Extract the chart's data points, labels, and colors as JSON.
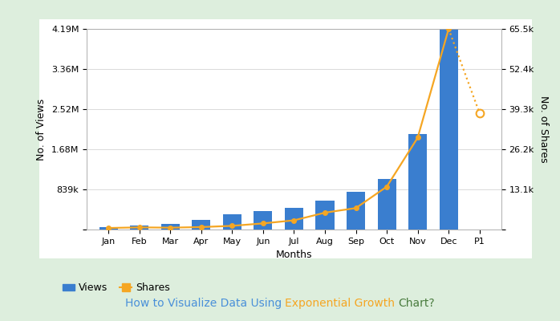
{
  "months": [
    "Jan",
    "Feb",
    "Mar",
    "Apr",
    "May",
    "Jun",
    "Jul",
    "Aug",
    "Sep",
    "Oct",
    "Nov",
    "Dec",
    "P1"
  ],
  "views": [
    50000,
    80000,
    120000,
    200000,
    320000,
    380000,
    450000,
    600000,
    780000,
    1050000,
    2000000,
    4190000,
    0
  ],
  "shares": [
    500,
    700,
    600,
    800,
    1200,
    2000,
    3000,
    5500,
    7000,
    14000,
    30000,
    65500,
    38000
  ],
  "bar_color": "#3a7ecf",
  "line_color": "#f5a623",
  "background_color": "#ffffff",
  "outer_bg_color": "#ddeedd",
  "title_part1": "How to Visualize Data Using ",
  "title_part2": "Exponential Growth ",
  "title_part3": "Chart?",
  "title_color1": "#4a90d9",
  "title_color2": "#f5a623",
  "title_color3": "#4a7c3f",
  "xlabel": "Months",
  "ylabel_left": "No. of Views",
  "ylabel_right": "No. of Shares",
  "ylim_left": [
    0,
    4190000
  ],
  "ylim_right": [
    0,
    65500
  ],
  "yticks_left": [
    0,
    839000,
    1680000,
    2520000,
    3360000,
    4190000
  ],
  "yticks_left_labels": [
    "",
    "839k",
    "1.68M",
    "2.52M",
    "3.36M",
    "4.19M"
  ],
  "yticks_right": [
    0,
    13100,
    26200,
    39300,
    52400,
    65500
  ],
  "yticks_right_labels": [
    "",
    "13.1k",
    "26.2k",
    "39.3k",
    "52.4k",
    "65.5k"
  ],
  "legend_labels": [
    "Views",
    "Shares"
  ],
  "p1_shares_value": 38000,
  "fig_width": 6.98,
  "fig_height": 4.0,
  "dpi": 100
}
